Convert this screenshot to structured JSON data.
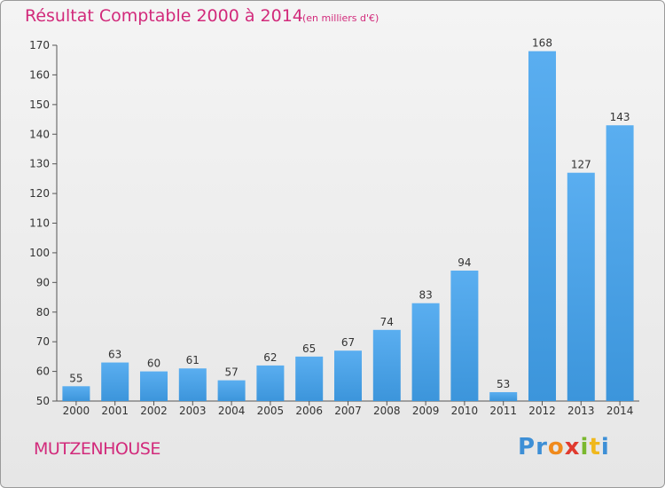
{
  "header": {
    "title": "Résultat Comptable 2000 à 2014",
    "subtitle": "(en milliers d'€)"
  },
  "footer": {
    "commune": "MUTZENHOUSE",
    "logo_letters": [
      "P",
      "r",
      "o",
      "x",
      "i",
      "t",
      "i"
    ],
    "logo_colors": [
      "#3d8fd6",
      "#3d8fd6",
      "#f08a1c",
      "#e03a2e",
      "#7ab82e",
      "#f0b81c",
      "#3d8fd6"
    ]
  },
  "chart_data": {
    "type": "bar",
    "categories": [
      "2000",
      "2001",
      "2002",
      "2003",
      "2004",
      "2005",
      "2006",
      "2007",
      "2008",
      "2009",
      "2010",
      "2011",
      "2012",
      "2013",
      "2014"
    ],
    "values": [
      55,
      63,
      60,
      61,
      57,
      62,
      65,
      67,
      74,
      83,
      94,
      53,
      168,
      127,
      143
    ],
    "ylim": [
      50,
      170
    ],
    "yticks": [
      50,
      60,
      70,
      80,
      90,
      100,
      110,
      120,
      130,
      140,
      150,
      160,
      170
    ],
    "grid": false,
    "bar_color": "#3c95db",
    "bar_color_light": "#5aaef0"
  }
}
